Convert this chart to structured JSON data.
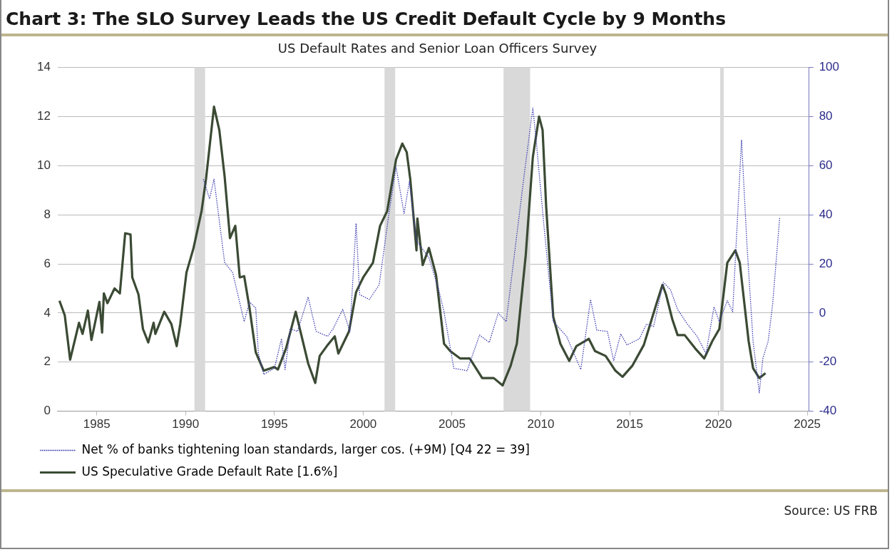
{
  "chart_data": {
    "type": "line",
    "title": "Chart 3: The SLO Survey Leads the US Credit Default Cycle by 9 Months",
    "subtitle": "US Default Rates and Senior Loan Officers Survey",
    "annotations": [
      "Source: US FRB"
    ],
    "xlim": [
      1982.8,
      2025.1
    ],
    "xticks": [
      1985,
      1990,
      1995,
      2000,
      2005,
      2010,
      2015,
      2020,
      2025
    ],
    "ylim": [
      0,
      14
    ],
    "yticks": [
      0,
      2,
      4,
      6,
      8,
      10,
      12,
      14
    ],
    "y2lim": [
      -40,
      100
    ],
    "y2ticks": [
      -40,
      -20,
      0,
      20,
      40,
      60,
      80,
      100
    ],
    "grid": "y",
    "legend": "bottom",
    "marker": "none",
    "bands": [
      {
        "axis": "x",
        "from": 1990.5,
        "to": 1991.1,
        "color": "#d9d9d9"
      },
      {
        "axis": "x",
        "from": 2001.2,
        "to": 2001.8,
        "color": "#d9d9d9"
      },
      {
        "axis": "x",
        "from": 2007.9,
        "to": 2009.4,
        "color": "#d9d9d9"
      },
      {
        "axis": "x",
        "from": 2020.1,
        "to": 2020.3,
        "color": "#d9d9d9"
      }
    ],
    "series": [
      {
        "name": "Net % of banks tightening loan standards, larger cos. (+9M) [Q4 22 = 39]",
        "color": "#3f3fb0",
        "axis": "y2",
        "line_style": "dotted",
        "x": [
          1991.0,
          1991.35,
          1991.6,
          1992.2,
          1992.65,
          1993.3,
          1993.6,
          1993.95,
          1994.1,
          1994.4,
          1995.0,
          1995.4,
          1995.6,
          1995.9,
          1996.3,
          1996.9,
          1997.35,
          1998.0,
          1998.3,
          1998.85,
          1999.25,
          1999.6,
          1999.8,
          2000.35,
          2000.9,
          2001.45,
          2001.85,
          2002.3,
          2002.6,
          2003.0,
          2003.7,
          2004.25,
          2004.55,
          2005.1,
          2005.85,
          2006.55,
          2007.1,
          2007.6,
          2008.05,
          2009.05,
          2009.55,
          2009.75,
          2010.15,
          2010.7,
          2011.45,
          2012.25,
          2012.8,
          2013.15,
          2013.75,
          2014.1,
          2014.5,
          2014.85,
          2015.55,
          2015.95,
          2016.35,
          2016.9,
          2017.3,
          2017.7,
          2018.25,
          2018.8,
          2019.3,
          2019.75,
          2020.05,
          2020.5,
          2020.8,
          2021.3,
          2021.6,
          2021.95,
          2022.3,
          2022.5,
          2022.8,
          2023.05,
          2023.45
        ],
        "values": [
          54.5,
          46.5,
          54.5,
          20.5,
          16.5,
          -3.5,
          4.5,
          2,
          -16.5,
          -25,
          -22.5,
          -10.5,
          -23,
          -6.5,
          -7.5,
          6.5,
          -7.5,
          -9.5,
          -6.5,
          1.5,
          -7.5,
          36.5,
          7.5,
          5.5,
          11.5,
          40.5,
          59.5,
          40.5,
          53.5,
          29.5,
          22.5,
          9.5,
          0.5,
          -22.5,
          -23.5,
          -9,
          -12,
          0,
          -3.5,
          55.5,
          83.5,
          69.5,
          37.5,
          -3.5,
          -9.5,
          -23,
          5.5,
          -7,
          -7.5,
          -19.5,
          -8.5,
          -13,
          -10.5,
          -4.5,
          -5.5,
          12.5,
          9.5,
          1.5,
          -4.5,
          -9.5,
          -16.5,
          2.5,
          -3.5,
          5,
          0.5,
          70.5,
          28.5,
          -11.5,
          -32.5,
          -18.5,
          -11.5,
          3.5,
          39
        ]
      },
      {
        "name": "US Speculative Grade Default Rate [1.6%]",
        "color": "#3b4a34",
        "line_style": "solid",
        "x": [
          1982.9,
          1983.2,
          1983.5,
          1984.0,
          1984.2,
          1984.5,
          1984.7,
          1985.15,
          1985.3,
          1985.4,
          1985.6,
          1986.0,
          1986.3,
          1986.6,
          1986.9,
          1987.0,
          1987.35,
          1987.6,
          1987.9,
          1988.2,
          1988.3,
          1988.8,
          1989.2,
          1989.5,
          1989.7,
          1990.05,
          1990.45,
          1990.9,
          1991.15,
          1991.6,
          1991.9,
          1992.2,
          1992.5,
          1992.8,
          1993.05,
          1993.3,
          1993.6,
          1993.95,
          1994.4,
          1995.0,
          1995.2,
          1995.65,
          1996.2,
          1996.9,
          1997.3,
          1997.55,
          1997.95,
          1998.4,
          1998.6,
          1999.2,
          1999.6,
          2000.0,
          2000.55,
          2000.95,
          2001.35,
          2001.85,
          2002.2,
          2002.45,
          2002.65,
          2003.0,
          2003.05,
          2003.35,
          2003.7,
          2004.1,
          2004.55,
          2004.9,
          2005.45,
          2006.0,
          2006.7,
          2007.35,
          2007.85,
          2008.3,
          2008.65,
          2009.15,
          2009.55,
          2009.9,
          2010.1,
          2010.3,
          2010.7,
          2011.1,
          2011.6,
          2012.0,
          2012.7,
          2013.05,
          2013.65,
          2014.2,
          2014.6,
          2015.15,
          2015.8,
          2016.5,
          2016.85,
          2017.05,
          2017.4,
          2017.7,
          2018.1,
          2018.7,
          2019.2,
          2019.65,
          2020.05,
          2020.5,
          2020.95,
          2021.2,
          2021.7,
          2021.95,
          2022.3,
          2022.65
        ],
        "values": [
          4.5,
          3.9,
          2.1,
          3.6,
          3.15,
          4.1,
          2.9,
          4.45,
          3.2,
          4.8,
          4.4,
          5.0,
          4.8,
          7.25,
          7.2,
          5.45,
          4.75,
          3.35,
          2.8,
          3.6,
          3.15,
          4.05,
          3.55,
          2.65,
          3.55,
          5.65,
          6.65,
          8.15,
          9.45,
          12.4,
          11.45,
          9.55,
          7.05,
          7.55,
          5.45,
          5.5,
          4.2,
          2.4,
          1.65,
          1.8,
          1.7,
          2.55,
          4.05,
          1.95,
          1.15,
          2.25,
          2.65,
          3.05,
          2.35,
          3.25,
          4.85,
          5.45,
          6.05,
          7.55,
          8.15,
          10.25,
          10.9,
          10.55,
          9.45,
          6.55,
          7.85,
          5.95,
          6.65,
          5.55,
          2.75,
          2.45,
          2.15,
          2.15,
          1.35,
          1.35,
          1.05,
          1.85,
          2.75,
          6.35,
          10.35,
          12.0,
          11.45,
          8.35,
          3.85,
          2.75,
          2.05,
          2.65,
          2.95,
          2.45,
          2.25,
          1.65,
          1.4,
          1.85,
          2.7,
          4.35,
          5.15,
          4.75,
          3.75,
          3.1,
          3.1,
          2.55,
          2.15,
          2.85,
          3.35,
          6.05,
          6.55,
          6.05,
          2.85,
          1.75,
          1.35,
          1.55
        ]
      }
    ]
  }
}
